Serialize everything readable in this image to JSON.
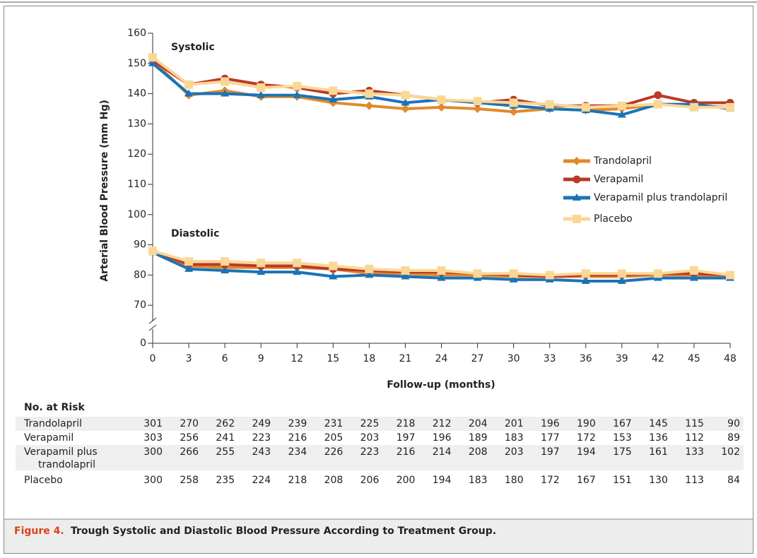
{
  "chart_data": {
    "type": "line",
    "y_axis_label": "Arterial Blood Pressure (mm Hg)",
    "x_axis_label": "Follow-up (months)",
    "x": [
      0,
      3,
      6,
      9,
      12,
      15,
      18,
      21,
      24,
      27,
      30,
      33,
      36,
      39,
      42,
      45,
      48
    ],
    "xlim": [
      0,
      48
    ],
    "xticks": [
      0,
      3,
      6,
      9,
      12,
      15,
      18,
      21,
      24,
      27,
      30,
      33,
      36,
      39,
      42,
      45,
      48
    ],
    "ylim": [
      0,
      160
    ],
    "axis_break": [
      0,
      65
    ],
    "yticks": [
      0,
      70,
      80,
      90,
      100,
      110,
      120,
      130,
      140,
      150,
      160
    ],
    "series": [
      {
        "name": "Trandolapril",
        "color": "#e08a2c"
      },
      {
        "name": "Verapamil",
        "color": "#b93a26"
      },
      {
        "name": "Verapamil plus trandolapril",
        "color": "#1a73b6"
      },
      {
        "name": "Placebo",
        "color": "#fbd796"
      }
    ],
    "groups": [
      {
        "label": "Systolic",
        "values": [
          [
            151,
            139.5,
            141,
            139,
            139,
            137,
            136,
            135,
            135.5,
            135,
            134,
            135,
            134.5,
            135,
            136.5,
            136,
            135.5
          ],
          [
            151,
            143,
            145,
            143,
            142,
            140,
            141,
            139.5,
            138,
            137,
            138,
            136,
            136,
            136,
            139.5,
            137,
            137
          ],
          [
            150,
            140,
            140,
            139.5,
            139.5,
            138,
            139,
            137,
            138,
            137,
            136,
            135,
            134.5,
            133,
            136.5,
            136.5,
            135
          ],
          [
            152,
            143,
            144,
            142,
            142.5,
            141,
            140,
            139.5,
            138,
            137.5,
            137,
            136.5,
            135.5,
            136,
            136.5,
            135.5,
            135.5
          ]
        ]
      },
      {
        "label": "Diastolic",
        "values": [
          [
            88,
            83,
            82.5,
            82.5,
            82.5,
            82,
            80.5,
            80.5,
            80,
            80,
            79.5,
            79.5,
            79.5,
            79.5,
            80,
            80,
            79.5
          ],
          [
            88,
            83.5,
            83.5,
            83,
            83,
            82,
            81.5,
            81,
            81,
            80.5,
            80,
            79.5,
            80,
            80,
            80.5,
            80.5,
            80
          ],
          [
            87.5,
            82,
            81.5,
            81,
            81,
            79.5,
            80,
            79.5,
            79,
            79,
            78.5,
            78.5,
            78,
            78,
            79,
            79,
            79
          ],
          [
            88,
            84.5,
            84.5,
            84,
            84,
            83,
            82,
            81.5,
            81.5,
            80.5,
            80.5,
            80,
            80.5,
            80.5,
            80.5,
            81.5,
            80
          ]
        ]
      }
    ],
    "risk_table": {
      "title": "No. at Risk",
      "rows": [
        {
          "label": [
            "Trandolapril"
          ],
          "values": [
            301,
            270,
            262,
            249,
            239,
            231,
            225,
            218,
            212,
            204,
            201,
            196,
            190,
            167,
            145,
            115,
            90
          ]
        },
        {
          "label": [
            "Verapamil"
          ],
          "values": [
            303,
            256,
            241,
            223,
            216,
            205,
            203,
            197,
            196,
            189,
            183,
            177,
            172,
            153,
            136,
            112,
            89
          ]
        },
        {
          "label": [
            "Verapamil plus",
            "trandolapril"
          ],
          "values": [
            300,
            266,
            255,
            243,
            234,
            226,
            223,
            216,
            214,
            208,
            203,
            197,
            194,
            175,
            161,
            133,
            102
          ]
        },
        {
          "label": [
            "Placebo"
          ],
          "values": [
            300,
            258,
            235,
            224,
            218,
            208,
            206,
            200,
            194,
            183,
            180,
            172,
            167,
            151,
            130,
            113,
            84
          ]
        }
      ]
    },
    "caption": {
      "label": "Figure 4.",
      "text": "Trough Systolic and Diastolic Blood Pressure According to Treatment Group."
    }
  }
}
